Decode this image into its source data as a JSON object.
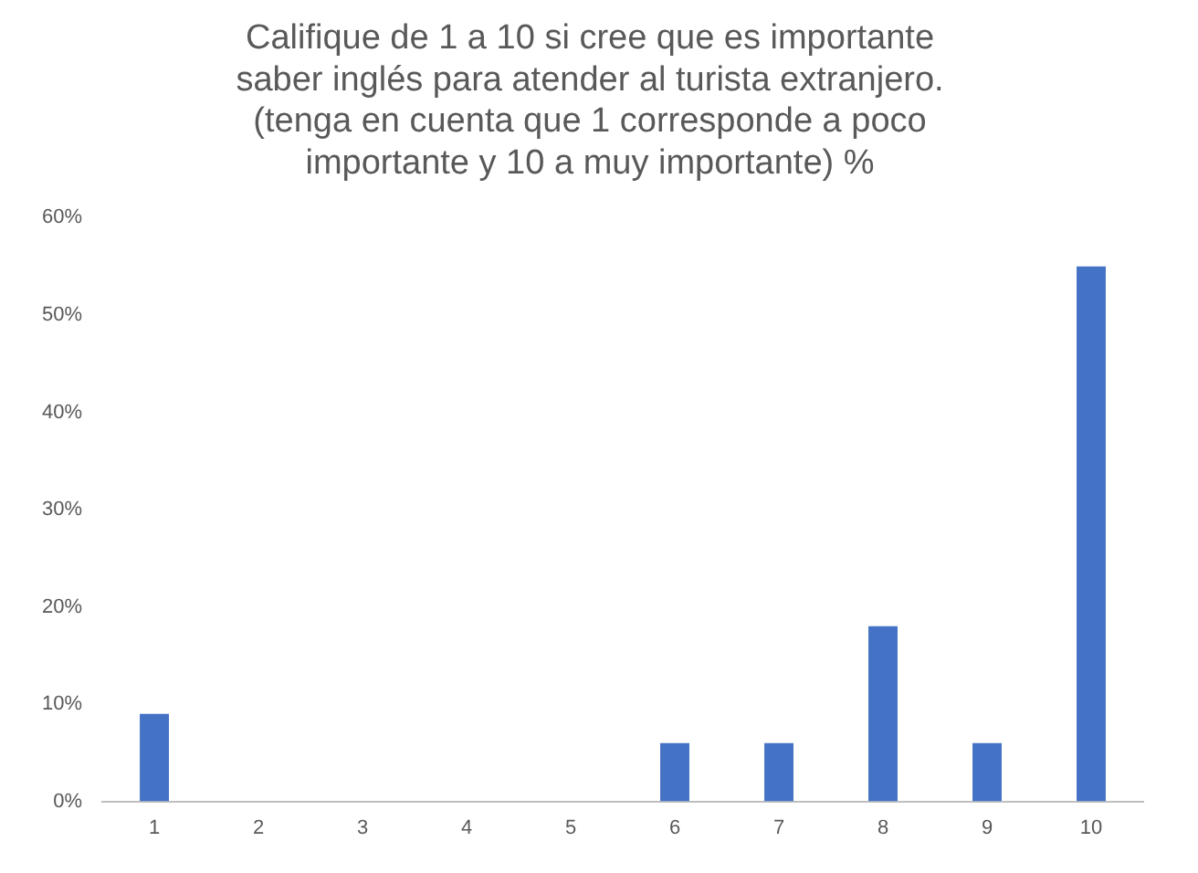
{
  "chart_data": {
    "type": "bar",
    "title": "Califique de 1 a 10 si cree que es importante\nsaber inglés para atender al turista extranjero.\n(tenga en cuenta que 1 corresponde a poco\nimportante y 10 a muy importante) %",
    "categories": [
      "1",
      "2",
      "3",
      "4",
      "5",
      "6",
      "7",
      "8",
      "9",
      "10"
    ],
    "values": [
      9,
      0,
      0,
      0,
      0,
      6,
      6,
      18,
      6,
      55
    ],
    "color": "#4472c4",
    "ylim": [
      0,
      60
    ],
    "yticks": [
      {
        "value": 0,
        "label": "0%"
      },
      {
        "value": 10,
        "label": "10%"
      },
      {
        "value": 20,
        "label": "20%"
      },
      {
        "value": 30,
        "label": "30%"
      },
      {
        "value": 40,
        "label": "40%"
      },
      {
        "value": 50,
        "label": "50%"
      },
      {
        "value": 60,
        "label": "60%"
      }
    ],
    "grid": false,
    "legend": false
  }
}
